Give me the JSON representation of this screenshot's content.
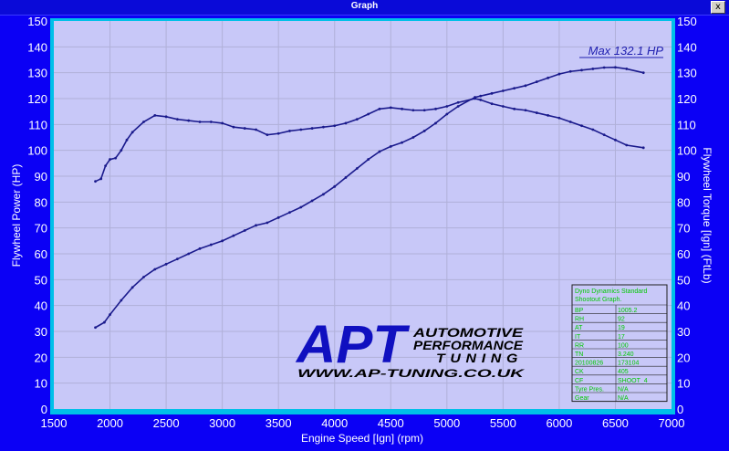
{
  "window": {
    "title": "Graph",
    "close_glyph": "x"
  },
  "chart_data": {
    "type": "line",
    "xlabel": "Engine Speed [Ign] (rpm)",
    "ylabel": "Flywheel Power (HP)",
    "y2label": "Flywheel Torque [Ign] (FtLb)",
    "xlim": [
      1500,
      7000
    ],
    "ylim": [
      0,
      150
    ],
    "y2lim": [
      0,
      150
    ],
    "xticks": [
      1500,
      2000,
      2500,
      3000,
      3500,
      4000,
      4500,
      5000,
      5500,
      6000,
      6500,
      7000
    ],
    "yticks": [
      0,
      10,
      20,
      30,
      40,
      50,
      60,
      70,
      80,
      90,
      100,
      110,
      120,
      130,
      140,
      150
    ],
    "grid": true,
    "annotation": "Max 132.1 HP",
    "series": [
      {
        "role": "power",
        "color": "#1a1a8c",
        "x": [
          1870,
          1950,
          2000,
          2100,
          2200,
          2300,
          2400,
          2500,
          2600,
          2700,
          2800,
          2900,
          3000,
          3100,
          3200,
          3300,
          3400,
          3500,
          3600,
          3700,
          3800,
          3900,
          4000,
          4100,
          4200,
          4300,
          4400,
          4500,
          4600,
          4700,
          4800,
          4900,
          5000,
          5100,
          5250,
          5300,
          5400,
          5500,
          5600,
          5700,
          5800,
          5900,
          6000,
          6100,
          6200,
          6300,
          6400,
          6500,
          6600,
          6750
        ],
        "values": [
          31.5,
          33.5,
          36.5,
          42,
          47,
          51,
          54,
          56,
          58,
          60,
          62,
          63.5,
          65,
          67,
          69,
          71,
          72,
          74,
          76,
          78,
          80.5,
          83,
          86,
          89.5,
          93,
          96.5,
          99.5,
          101.5,
          103,
          105,
          107.5,
          110.5,
          114,
          117,
          120.5,
          121,
          122,
          123,
          124,
          125,
          126.5,
          128,
          129.5,
          130.5,
          131,
          131.5,
          132,
          132.1,
          131.5,
          130
        ]
      },
      {
        "role": "torque",
        "color": "#1a1a8c",
        "x": [
          1870,
          1920,
          1960,
          2000,
          2050,
          2100,
          2150,
          2200,
          2300,
          2400,
          2500,
          2600,
          2700,
          2800,
          2900,
          3000,
          3100,
          3200,
          3300,
          3400,
          3500,
          3600,
          3700,
          3800,
          3900,
          4000,
          4100,
          4200,
          4300,
          4400,
          4500,
          4600,
          4700,
          4800,
          4900,
          5000,
          5100,
          5250,
          5300,
          5400,
          5500,
          5600,
          5700,
          5800,
          5900,
          6000,
          6100,
          6200,
          6300,
          6400,
          6500,
          6600,
          6750
        ],
        "values": [
          88,
          89,
          94,
          96.5,
          97,
          100,
          104,
          107,
          111,
          113.5,
          113,
          112,
          111.5,
          111,
          111,
          110.5,
          109,
          108.5,
          108,
          106,
          106.5,
          107.5,
          108,
          108.5,
          109,
          109.5,
          110.5,
          112,
          114,
          116,
          116.5,
          116,
          115.5,
          115.5,
          116,
          117,
          118.5,
          120,
          119.5,
          118,
          117,
          116,
          115.5,
          114.5,
          113.5,
          112.5,
          111,
          109.5,
          108,
          106,
          104,
          102,
          101
        ]
      }
    ]
  },
  "logo": {
    "mark": "APT",
    "line1": "AUTOMOTIVE",
    "line2": "PERFORMANCE",
    "line3": "TUNING",
    "url": "WWW.AP-TUNING.CO.UK"
  },
  "info_table": {
    "header": [
      "Dyno Dynamics Standard",
      "Shootout Graph."
    ],
    "rows": [
      [
        "BP",
        "1005.2"
      ],
      [
        "RH",
        "92"
      ],
      [
        "AT",
        "19"
      ],
      [
        "IT",
        "17"
      ],
      [
        "RR",
        "100"
      ],
      [
        "TN",
        "3.240"
      ],
      [
        "20100826",
        "173104"
      ],
      [
        "CK",
        "405"
      ],
      [
        "CF",
        "SHOOT_4"
      ],
      [
        "Tyre Pres.",
        "N/A"
      ],
      [
        "Gear",
        "N/A"
      ]
    ]
  },
  "colors": {
    "plot_bg": "#c8c8f8",
    "frame": "#00c0e8",
    "grid": "#b0b0d8",
    "curve": "#1a1a8c",
    "axis_text": "#ffffff",
    "table_text": "#00c800",
    "logo_blue": "#1010c0"
  }
}
